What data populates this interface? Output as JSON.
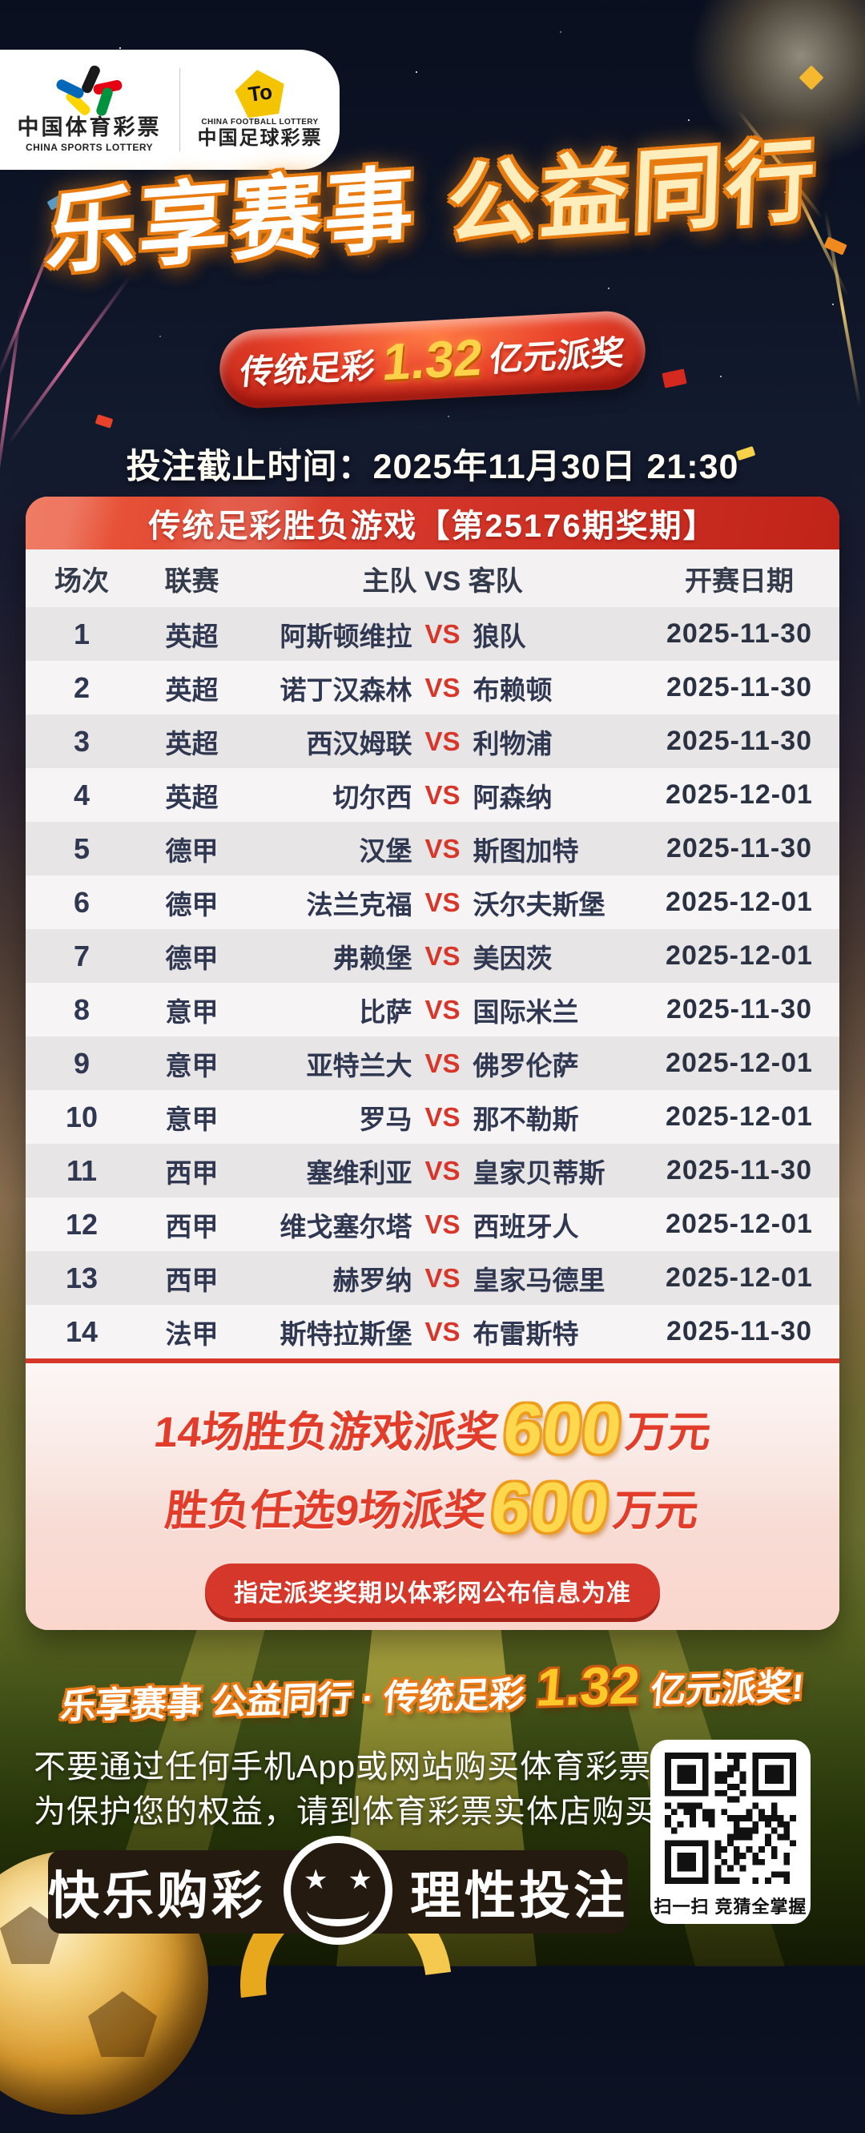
{
  "header": {
    "logo_left": {
      "cn": "中国体育彩票",
      "en": "CHINA SPORTS LOTTERY"
    },
    "logo_right": {
      "toto": "To",
      "en": "CHINA FOOTBALL LOTTERY",
      "cn": "中国足球彩票"
    },
    "title_part1": "乐享赛事",
    "title_part2": "公益同行",
    "banner": {
      "prefix": "传统足彩",
      "amount": "1.32",
      "suffix": "亿元派奖"
    },
    "deadline": "投注截止时间：2025年11月30日 21:30"
  },
  "table": {
    "title": "传统足彩胜负游戏【第25176期奖期】",
    "columns": [
      "场次",
      "联赛",
      "主队 VS 客队",
      "开赛日期"
    ],
    "vs_label": "VS",
    "rows": [
      {
        "no": "1",
        "league": "英超",
        "home": "阿斯顿维拉",
        "away": "狼队",
        "date": "2025-11-30"
      },
      {
        "no": "2",
        "league": "英超",
        "home": "诺丁汉森林",
        "away": "布赖顿",
        "date": "2025-11-30"
      },
      {
        "no": "3",
        "league": "英超",
        "home": "西汉姆联",
        "away": "利物浦",
        "date": "2025-11-30"
      },
      {
        "no": "4",
        "league": "英超",
        "home": "切尔西",
        "away": "阿森纳",
        "date": "2025-12-01"
      },
      {
        "no": "5",
        "league": "德甲",
        "home": "汉堡",
        "away": "斯图加特",
        "date": "2025-11-30"
      },
      {
        "no": "6",
        "league": "德甲",
        "home": "法兰克福",
        "away": "沃尔夫斯堡",
        "date": "2025-12-01"
      },
      {
        "no": "7",
        "league": "德甲",
        "home": "弗赖堡",
        "away": "美因茨",
        "date": "2025-12-01"
      },
      {
        "no": "8",
        "league": "意甲",
        "home": "比萨",
        "away": "国际米兰",
        "date": "2025-11-30"
      },
      {
        "no": "9",
        "league": "意甲",
        "home": "亚特兰大",
        "away": "佛罗伦萨",
        "date": "2025-12-01"
      },
      {
        "no": "10",
        "league": "意甲",
        "home": "罗马",
        "away": "那不勒斯",
        "date": "2025-12-01"
      },
      {
        "no": "11",
        "league": "西甲",
        "home": "塞维利亚",
        "away": "皇家贝蒂斯",
        "date": "2025-11-30"
      },
      {
        "no": "12",
        "league": "西甲",
        "home": "维戈塞尔塔",
        "away": "西班牙人",
        "date": "2025-12-01"
      },
      {
        "no": "13",
        "league": "西甲",
        "home": "赫罗纳",
        "away": "皇家马德里",
        "date": "2025-12-01"
      },
      {
        "no": "14",
        "league": "法甲",
        "home": "斯特拉斯堡",
        "away": "布雷斯特",
        "date": "2025-11-30"
      }
    ]
  },
  "prizes": {
    "line1": {
      "prefix": "14场胜负游戏派奖",
      "amount": "600",
      "suffix": "万元"
    },
    "line2": {
      "prefix": "胜负任选9场派奖",
      "amount": "600",
      "suffix": "万元"
    },
    "note": "指定派奖奖期以体彩网公布信息为准"
  },
  "footer": {
    "slogan": {
      "part1": "乐享赛事 公益同行 · 传统足彩",
      "amount": "1.32",
      "part2": "亿元派奖!"
    },
    "warning_line1": "不要通过任何手机App或网站购买体育彩票",
    "warning_line2": "为保护您的权益，请到体育彩票实体店购买",
    "bar": {
      "left": "快乐购彩",
      "right": "理性投注"
    },
    "qr_caption": "扫一扫  竞猜全掌握"
  },
  "colors": {
    "accent_red": "#d5382a",
    "gold": "#ffd24a",
    "night_navy": "#0c1222",
    "field_green": "#55611f"
  }
}
